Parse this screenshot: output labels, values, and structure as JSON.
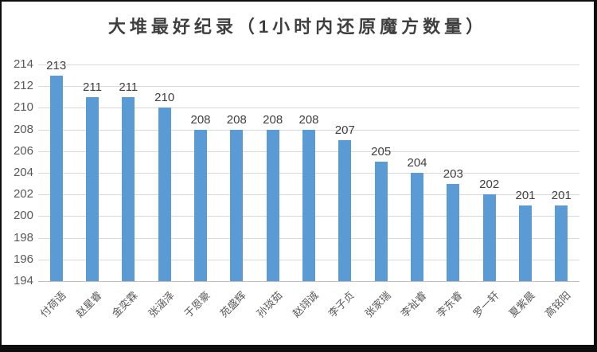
{
  "window": {
    "frame_color": "#0d0d0d",
    "canvas_color": "#ffffff"
  },
  "chart_data": {
    "type": "bar",
    "title": "大堆最好纪录（1小时内还原魔方数量）",
    "categories": [
      "付荷语",
      "赵星睿",
      "金奕霖",
      "张涵泽",
      "于恩豪",
      "苑盛辉",
      "孙琰茹",
      "赵翊诚",
      "李子贞",
      "张家瑞",
      "李祉睿",
      "李东睿",
      "罗一轩",
      "夏紫晨",
      "高铭阳"
    ],
    "values": [
      213,
      211,
      211,
      210,
      208,
      208,
      208,
      208,
      207,
      205,
      204,
      203,
      202,
      201,
      201
    ],
    "data_labels_shown": true,
    "xlabel": "",
    "ylabel": "",
    "ylim": [
      194,
      214
    ],
    "ytick_step": 2,
    "yticks": [
      214,
      212,
      210,
      208,
      206,
      204,
      202,
      200,
      198,
      196,
      194
    ],
    "grid": "horizontal",
    "legend_position": "none",
    "bar_color": "#5B9BD5",
    "gridline_color": "#D9D9D9",
    "axis_line_color": "#BFBFBF",
    "title_color": "#3f3f3f",
    "data_label_color": "#404040",
    "tick_label_color": "#595959"
  }
}
